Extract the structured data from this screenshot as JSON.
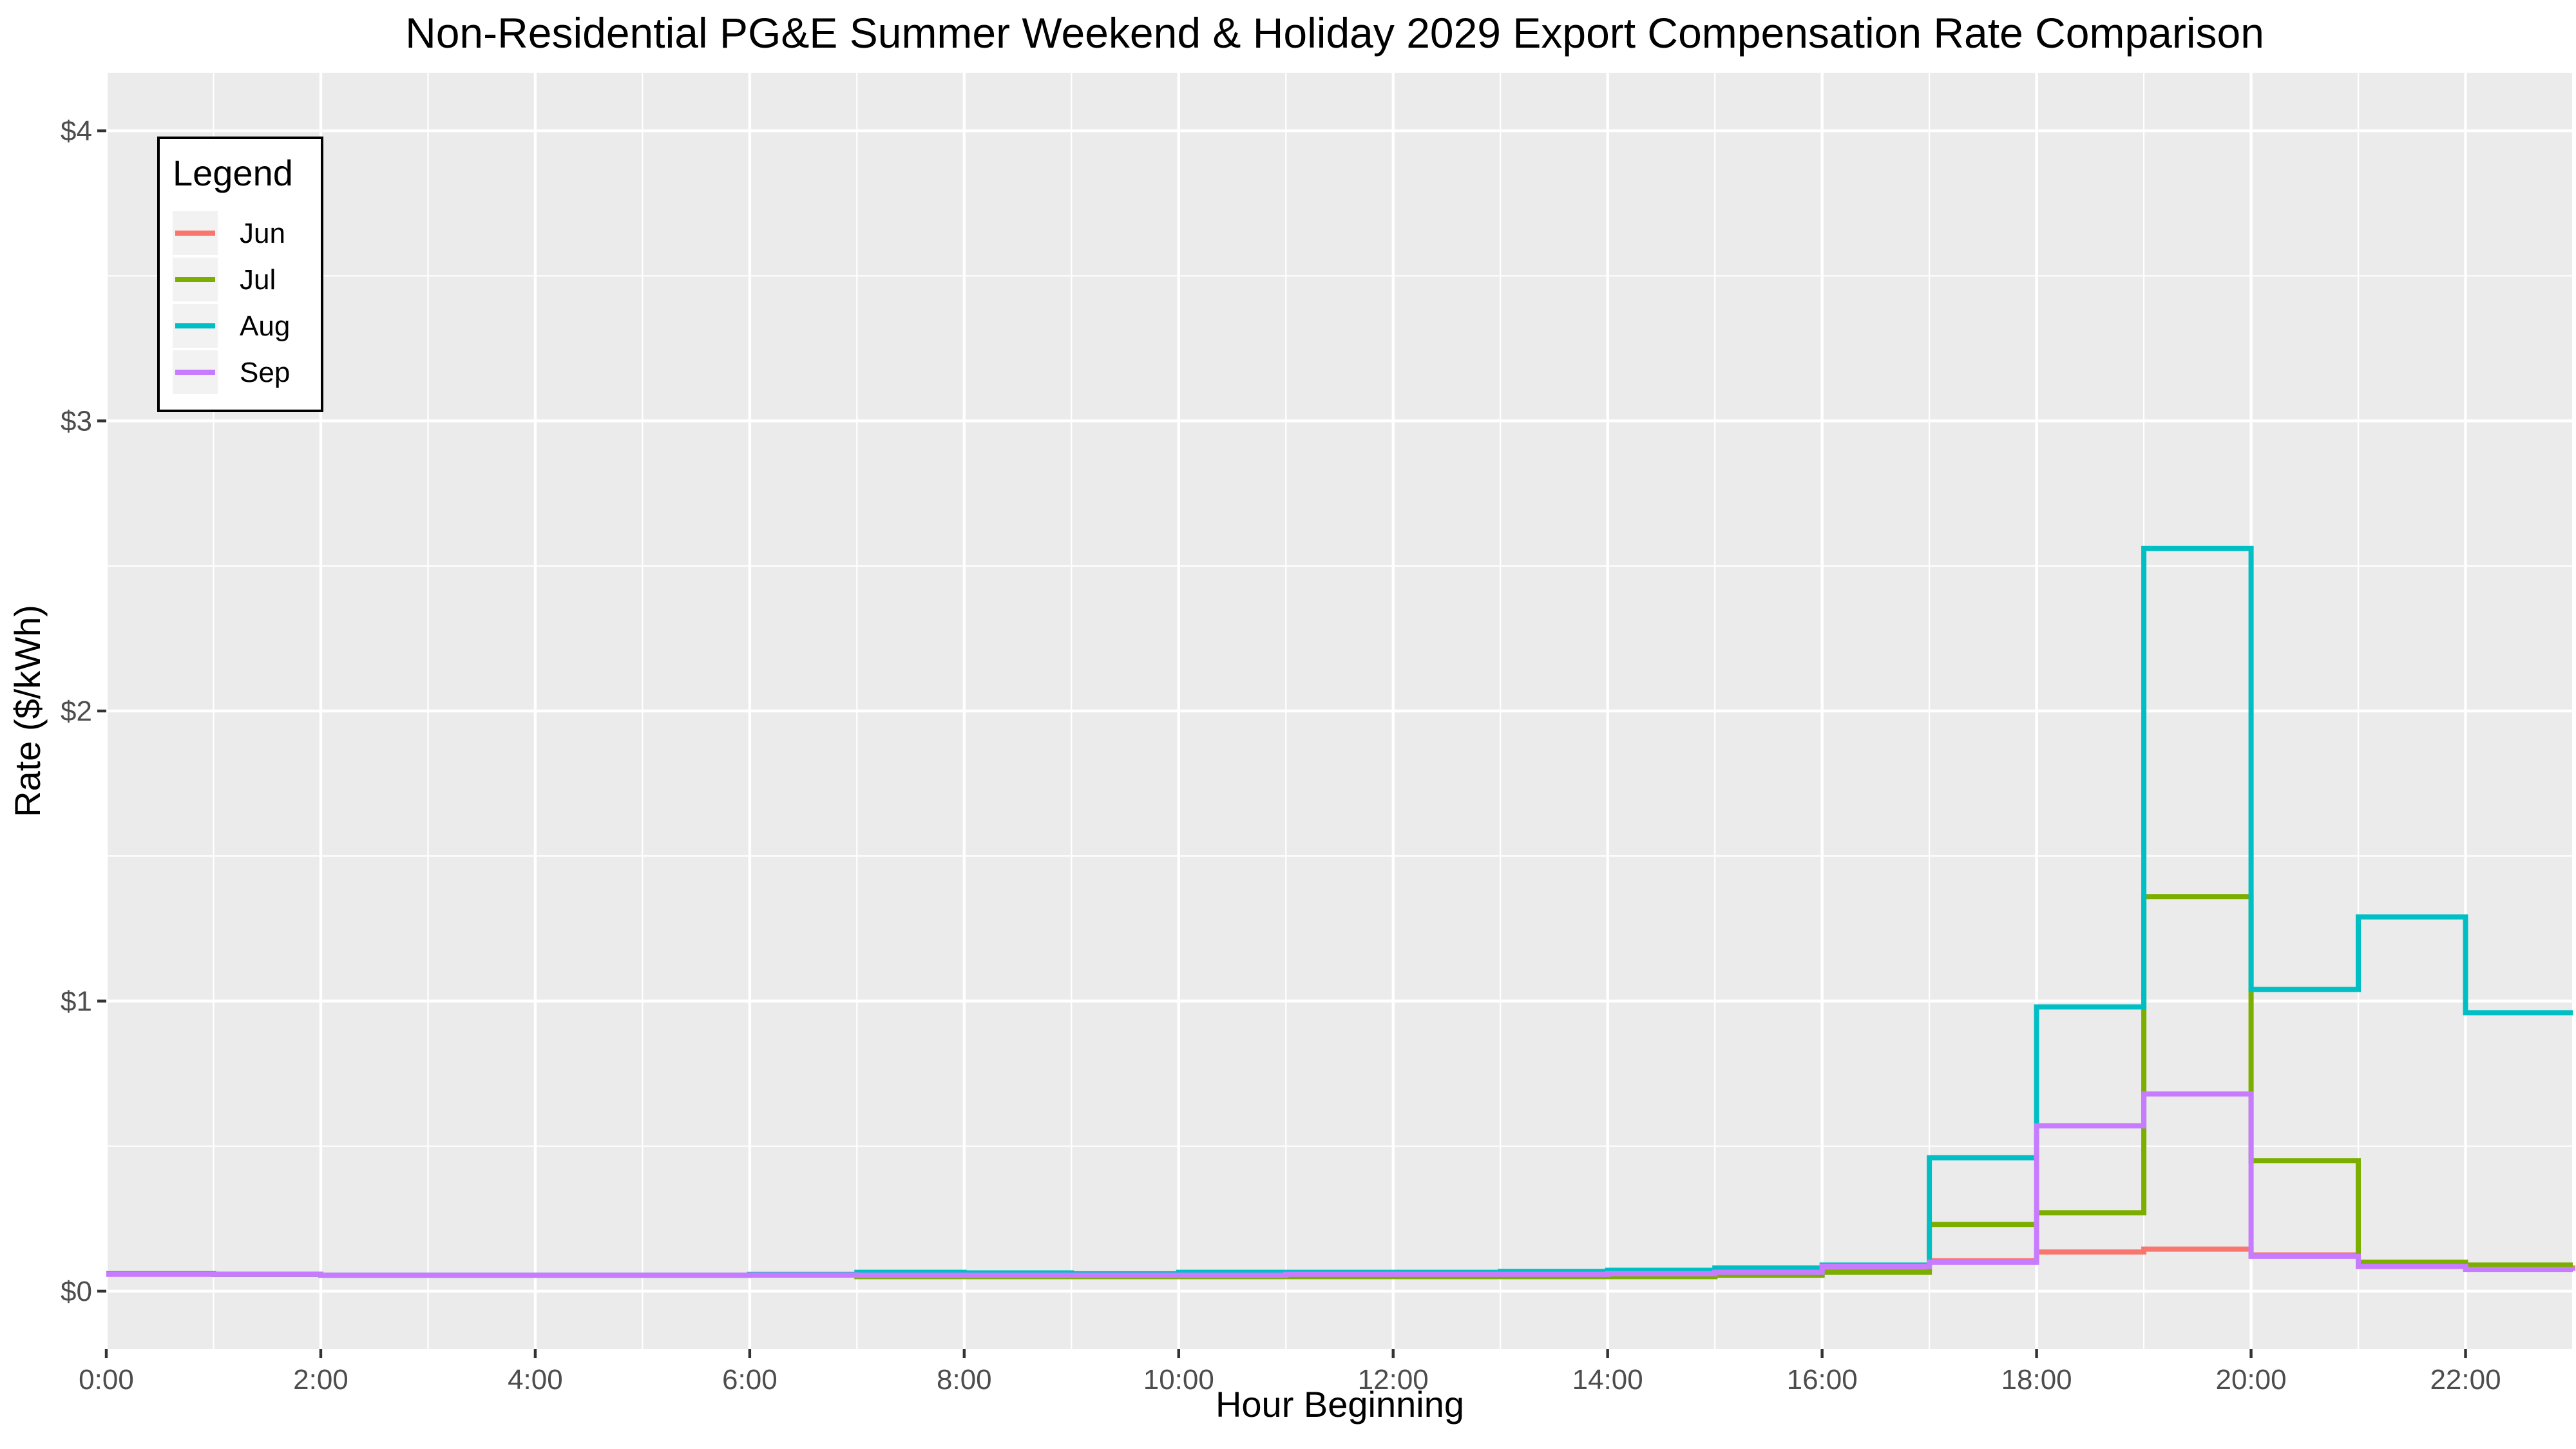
{
  "chart_data": {
    "type": "line",
    "step": true,
    "title": "Non-Residential PG&E Summer Weekend & Holiday 2029 Export Compensation Rate Comparison",
    "xlabel": "Hour Beginning",
    "ylabel": "Rate ($/kWh)",
    "x": [
      0,
      1,
      2,
      3,
      4,
      5,
      6,
      7,
      8,
      9,
      10,
      11,
      12,
      13,
      14,
      15,
      16,
      17,
      18,
      19,
      20,
      21,
      22,
      23
    ],
    "xlim": [
      0,
      23
    ],
    "ylim": [
      -0.2,
      4.2
    ],
    "x_ticks": [
      0,
      2,
      4,
      6,
      8,
      10,
      12,
      14,
      16,
      18,
      20,
      22
    ],
    "x_tick_labels": [
      "0:00",
      "2:00",
      "4:00",
      "6:00",
      "8:00",
      "10:00",
      "12:00",
      "14:00",
      "16:00",
      "18:00",
      "20:00",
      "22:00"
    ],
    "y_ticks": [
      0,
      1,
      2,
      3,
      4
    ],
    "y_tick_labels": [
      "$0",
      "$1",
      "$2",
      "$3",
      "$4"
    ],
    "grid": true,
    "legend": {
      "title": "Legend",
      "position": "top-left"
    },
    "series": [
      {
        "name": "Jun",
        "color": "#F8766D",
        "values": [
          0.06,
          0.058,
          0.055,
          0.055,
          0.055,
          0.055,
          0.056,
          0.057,
          0.057,
          0.055,
          0.057,
          0.058,
          0.058,
          0.058,
          0.058,
          0.062,
          0.075,
          0.105,
          0.135,
          0.145,
          0.125,
          0.09,
          0.08,
          0.07
        ]
      },
      {
        "name": "Jul",
        "color": "#7CAE00",
        "values": [
          0.06,
          0.058,
          0.055,
          0.055,
          0.055,
          0.055,
          0.056,
          0.05,
          0.05,
          0.05,
          0.05,
          0.05,
          0.05,
          0.05,
          0.05,
          0.055,
          0.065,
          0.23,
          0.27,
          1.36,
          0.45,
          0.1,
          0.09,
          0.09
        ]
      },
      {
        "name": "Aug",
        "color": "#00BFC4",
        "values": [
          0.06,
          0.058,
          0.055,
          0.055,
          0.055,
          0.055,
          0.058,
          0.065,
          0.063,
          0.06,
          0.065,
          0.065,
          0.065,
          0.068,
          0.072,
          0.08,
          0.09,
          0.46,
          0.98,
          2.56,
          1.04,
          1.29,
          0.96,
          0.96
        ]
      },
      {
        "name": "Sep",
        "color": "#C77CFF",
        "values": [
          0.058,
          0.058,
          0.055,
          0.055,
          0.055,
          0.055,
          0.056,
          0.055,
          0.055,
          0.055,
          0.055,
          0.058,
          0.058,
          0.058,
          0.06,
          0.065,
          0.085,
          0.1,
          0.57,
          0.68,
          0.12,
          0.085,
          0.075,
          0.07
        ]
      }
    ]
  }
}
